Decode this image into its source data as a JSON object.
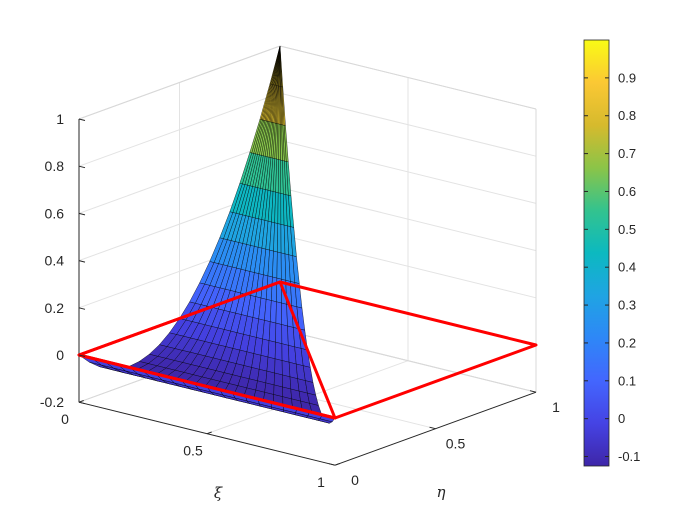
{
  "chart_data": {
    "type": "surface",
    "title": "",
    "xlabel": "ξ",
    "ylabel": "η",
    "zlabel": "",
    "xlim": [
      0,
      1
    ],
    "ylim": [
      0,
      1
    ],
    "zlim": [
      -0.2,
      1
    ],
    "x_ticks": [
      "0",
      "0.5",
      "1"
    ],
    "y_ticks": [
      "0",
      "0.5",
      "1"
    ],
    "z_ticks": [
      "-0.2",
      "0",
      "0.2",
      "0.4",
      "0.6",
      "0.8",
      "1"
    ],
    "grid": true,
    "colormap": "parula",
    "colorbar": {
      "position": "right",
      "limits": [
        -0.125,
        1
      ],
      "ticks": [
        "-0.1",
        "0",
        "0.1",
        "0.2",
        "0.3",
        "0.4",
        "0.5",
        "0.6",
        "0.7",
        "0.8",
        "0.9"
      ]
    },
    "surface": {
      "domain": "triangle ξ ≥ 0, η ≥ 0, ξ + η ≤ 1",
      "function": "η(2η − 1)",
      "values_along_eta_at_xi0": [
        {
          "eta": 0,
          "z": 0
        },
        {
          "eta": 0.25,
          "z": -0.125
        },
        {
          "eta": 0.5,
          "z": 0
        },
        {
          "eta": 0.75,
          "z": 0.375
        },
        {
          "eta": 1,
          "z": 1
        }
      ],
      "edge_color": "#000000"
    },
    "outlines": [
      {
        "shape": "reference triangle",
        "z": 0,
        "color": "#ff0000"
      },
      {
        "shape": "unit square",
        "z": 0,
        "color": "#ff0000"
      }
    ]
  }
}
